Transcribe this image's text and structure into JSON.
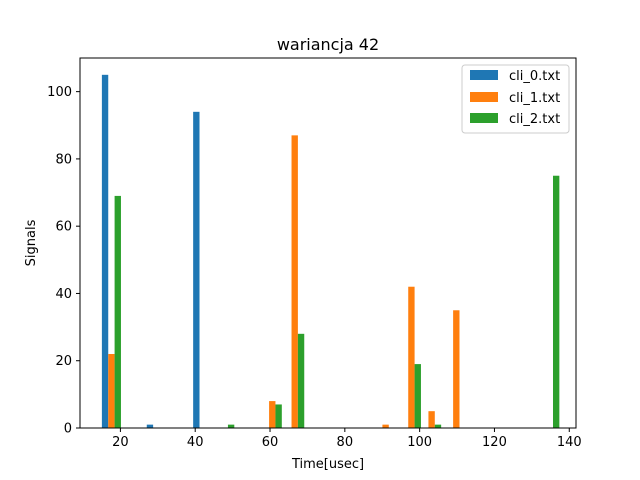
{
  "chart_data": {
    "type": "bar",
    "title": "wariancja 42",
    "xlabel": "Time[usec]",
    "ylabel": "Signals",
    "xlim": [
      9.2,
      141.8
    ],
    "ylim": [
      0,
      110
    ],
    "xticks": [
      20,
      40,
      60,
      80,
      100,
      120,
      140
    ],
    "yticks": [
      0,
      20,
      40,
      60,
      80,
      100
    ],
    "grid": false,
    "legend_position": "top-right",
    "bar_width": 1.7,
    "series": [
      {
        "name": "cli_0.txt",
        "color": "#1f77b4",
        "points": [
          {
            "x": 15.9,
            "y": 105
          },
          {
            "x": 27.9,
            "y": 1
          },
          {
            "x": 40.3,
            "y": 94
          }
        ]
      },
      {
        "name": "cli_1.txt",
        "color": "#ff7f0e",
        "points": [
          {
            "x": 17.6,
            "y": 22
          },
          {
            "x": 60.6,
            "y": 8
          },
          {
            "x": 66.6,
            "y": 87
          },
          {
            "x": 90.9,
            "y": 1
          },
          {
            "x": 97.8,
            "y": 42
          },
          {
            "x": 103.2,
            "y": 5
          },
          {
            "x": 109.8,
            "y": 35
          }
        ]
      },
      {
        "name": "cli_2.txt",
        "color": "#2ca02c",
        "points": [
          {
            "x": 19.3,
            "y": 69
          },
          {
            "x": 49.6,
            "y": 1
          },
          {
            "x": 62.3,
            "y": 7
          },
          {
            "x": 68.3,
            "y": 28
          },
          {
            "x": 99.5,
            "y": 19
          },
          {
            "x": 104.9,
            "y": 1
          },
          {
            "x": 136.5,
            "y": 75
          }
        ]
      }
    ]
  }
}
